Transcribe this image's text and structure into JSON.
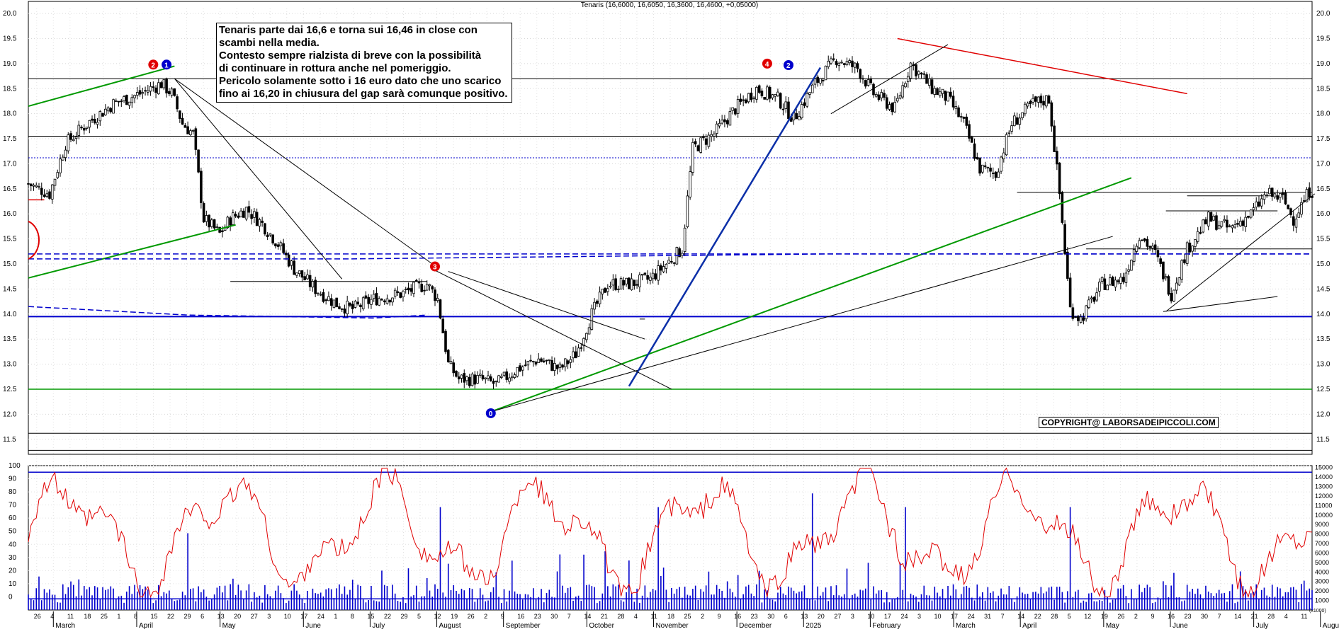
{
  "header_title": "Tenaris (16,6000, 16,6050, 16,3600, 16,4600, +0,05000)",
  "annotation": {
    "lines": [
      "Tenaris parte dai 16,6 e torna sui 16,46 in close con",
      "scambi nella media.",
      "Contesto sempre rialzista di breve con la possibilità",
      "di continuare in rottura anche nel pomeriggio.",
      "Pericolo solamente sotto i 16 euro dato che uno scarico",
      "fino ai 16,20 in chiusura del gap sarà comunque positivo."
    ]
  },
  "copyright": "COPYRIGHT@ LABORSADEIPICCOLI.COM",
  "x_axis_note": "(x1000)",
  "colors": {
    "up": "#000000",
    "red": "#e00000",
    "blue": "#0000cc",
    "green": "#009900",
    "darkblue": "#0b2fa8",
    "trend_black": "#000000"
  },
  "wave_labels": [
    {
      "text": "2",
      "color": "#e00000",
      "date_index": 47,
      "price": 18.98
    },
    {
      "text": "1",
      "color": "#0000cc",
      "date_index": 52,
      "price": 18.98
    },
    {
      "text": "3",
      "color": "#e00000",
      "date_index": 153,
      "price": 14.95
    },
    {
      "text": "0",
      "color": "#0000cc",
      "date_index": 174,
      "price": 12.02
    },
    {
      "text": "4",
      "color": "#e00000",
      "date_index": 278,
      "price": 19.0
    },
    {
      "text": "2",
      "color": "#0000cc",
      "date_index": 286,
      "price": 18.97
    }
  ],
  "chart_data": {
    "type": "candlestick",
    "title": "Tenaris",
    "price_axis": {
      "ylim": [
        11.2,
        20.1
      ],
      "ticks": [
        11.5,
        12.0,
        12.5,
        13.0,
        13.5,
        14.0,
        14.5,
        15.0,
        15.5,
        16.0,
        16.5,
        17.0,
        17.5,
        18.0,
        18.5,
        19.0,
        19.5,
        20.0
      ]
    },
    "x_axis": {
      "day_ticks": [
        "26",
        "4",
        "11",
        "18",
        "25",
        "1",
        "8",
        "15",
        "22",
        "29",
        "6",
        "13",
        "20",
        "27",
        "3",
        "10",
        "17",
        "24",
        "1",
        "8",
        "15",
        "22",
        "29",
        "5",
        "12",
        "19",
        "26",
        "2",
        "9",
        "16",
        "23",
        "30",
        "7",
        "14",
        "21",
        "28",
        "4",
        "11",
        "18",
        "25",
        "2",
        "9",
        "16",
        "23",
        "30",
        "6",
        "13",
        "20",
        "27",
        "3",
        "10",
        "17",
        "24",
        "3",
        "10",
        "17",
        "24",
        "31",
        "7",
        "14",
        "22",
        "28",
        "5",
        "12",
        "19",
        "26",
        "2",
        "9",
        "16",
        "23",
        "30",
        "7",
        "14",
        "21",
        "28",
        "4",
        "11"
      ],
      "month_labels": [
        "March",
        "April",
        "May",
        "June",
        "July",
        "August",
        "September",
        "October",
        "November",
        "December",
        "2025",
        "February",
        "March",
        "April",
        "May",
        "June",
        "July",
        "August"
      ]
    },
    "price_series_anchors": [
      {
        "i": 0,
        "close": 16.6
      },
      {
        "i": 8,
        "close": 16.4
      },
      {
        "i": 14,
        "close": 17.4
      },
      {
        "i": 22,
        "close": 17.8
      },
      {
        "i": 32,
        "close": 18.2
      },
      {
        "i": 42,
        "close": 18.4
      },
      {
        "i": 50,
        "close": 18.6
      },
      {
        "i": 54,
        "close": 18.4
      },
      {
        "i": 58,
        "close": 17.8
      },
      {
        "i": 62,
        "close": 17.6
      },
      {
        "i": 66,
        "close": 15.9
      },
      {
        "i": 72,
        "close": 15.6
      },
      {
        "i": 76,
        "close": 15.9
      },
      {
        "i": 82,
        "close": 16.1
      },
      {
        "i": 88,
        "close": 15.8
      },
      {
        "i": 94,
        "close": 15.4
      },
      {
        "i": 100,
        "close": 14.9
      },
      {
        "i": 108,
        "close": 14.5
      },
      {
        "i": 116,
        "close": 14.2
      },
      {
        "i": 122,
        "close": 14.1
      },
      {
        "i": 130,
        "close": 14.3
      },
      {
        "i": 140,
        "close": 14.4
      },
      {
        "i": 150,
        "close": 14.6
      },
      {
        "i": 154,
        "close": 14.3
      },
      {
        "i": 158,
        "close": 13.0
      },
      {
        "i": 162,
        "close": 12.7
      },
      {
        "i": 170,
        "close": 12.7
      },
      {
        "i": 176,
        "close": 12.6
      },
      {
        "i": 184,
        "close": 12.9
      },
      {
        "i": 192,
        "close": 13.1
      },
      {
        "i": 200,
        "close": 12.9
      },
      {
        "i": 206,
        "close": 13.2
      },
      {
        "i": 212,
        "close": 14.0
      },
      {
        "i": 218,
        "close": 14.6
      },
      {
        "i": 226,
        "close": 14.6
      },
      {
        "i": 234,
        "close": 14.7
      },
      {
        "i": 240,
        "close": 15.0
      },
      {
        "i": 246,
        "close": 15.3
      },
      {
        "i": 250,
        "close": 17.3
      },
      {
        "i": 258,
        "close": 17.6
      },
      {
        "i": 266,
        "close": 18.1
      },
      {
        "i": 274,
        "close": 18.5
      },
      {
        "i": 282,
        "close": 18.3
      },
      {
        "i": 288,
        "close": 17.9
      },
      {
        "i": 296,
        "close": 18.6
      },
      {
        "i": 304,
        "close": 19.1
      },
      {
        "i": 312,
        "close": 18.9
      },
      {
        "i": 318,
        "close": 18.4
      },
      {
        "i": 326,
        "close": 18.1
      },
      {
        "i": 332,
        "close": 19.0
      },
      {
        "i": 340,
        "close": 18.5
      },
      {
        "i": 346,
        "close": 18.3
      },
      {
        "i": 352,
        "close": 17.8
      },
      {
        "i": 358,
        "close": 16.9
      },
      {
        "i": 364,
        "close": 16.8
      },
      {
        "i": 370,
        "close": 17.8
      },
      {
        "i": 378,
        "close": 18.2
      },
      {
        "i": 384,
        "close": 18.3
      },
      {
        "i": 388,
        "close": 16.4
      },
      {
        "i": 392,
        "close": 14.1
      },
      {
        "i": 396,
        "close": 13.9
      },
      {
        "i": 404,
        "close": 14.6
      },
      {
        "i": 412,
        "close": 14.7
      },
      {
        "i": 418,
        "close": 15.6
      },
      {
        "i": 424,
        "close": 15.2
      },
      {
        "i": 430,
        "close": 14.4
      },
      {
        "i": 436,
        "close": 15.3
      },
      {
        "i": 444,
        "close": 15.9
      },
      {
        "i": 452,
        "close": 15.7
      },
      {
        "i": 460,
        "close": 16.0
      },
      {
        "i": 466,
        "close": 16.4
      },
      {
        "i": 472,
        "close": 16.3
      },
      {
        "i": 476,
        "close": 15.9
      },
      {
        "i": 482,
        "close": 16.46
      }
    ],
    "oscillator": {
      "ylim": [
        -10,
        100
      ],
      "ticks": [
        0,
        10,
        20,
        30,
        40,
        50,
        60,
        70,
        80,
        90,
        100
      ],
      "line_color": "#e00000"
    },
    "volume": {
      "unit_note": "(x1000)",
      "ticks": [
        1000,
        2000,
        3000,
        4000,
        5000,
        6000,
        7000,
        8000,
        9000,
        10000,
        11000,
        12000,
        13000,
        14000,
        15000
      ]
    },
    "horizontal_levels": [
      18.7,
      17.55,
      17.12,
      16.43,
      15.3,
      15.2,
      13.95,
      12.5,
      11.62,
      11.28
    ],
    "grid": true
  }
}
